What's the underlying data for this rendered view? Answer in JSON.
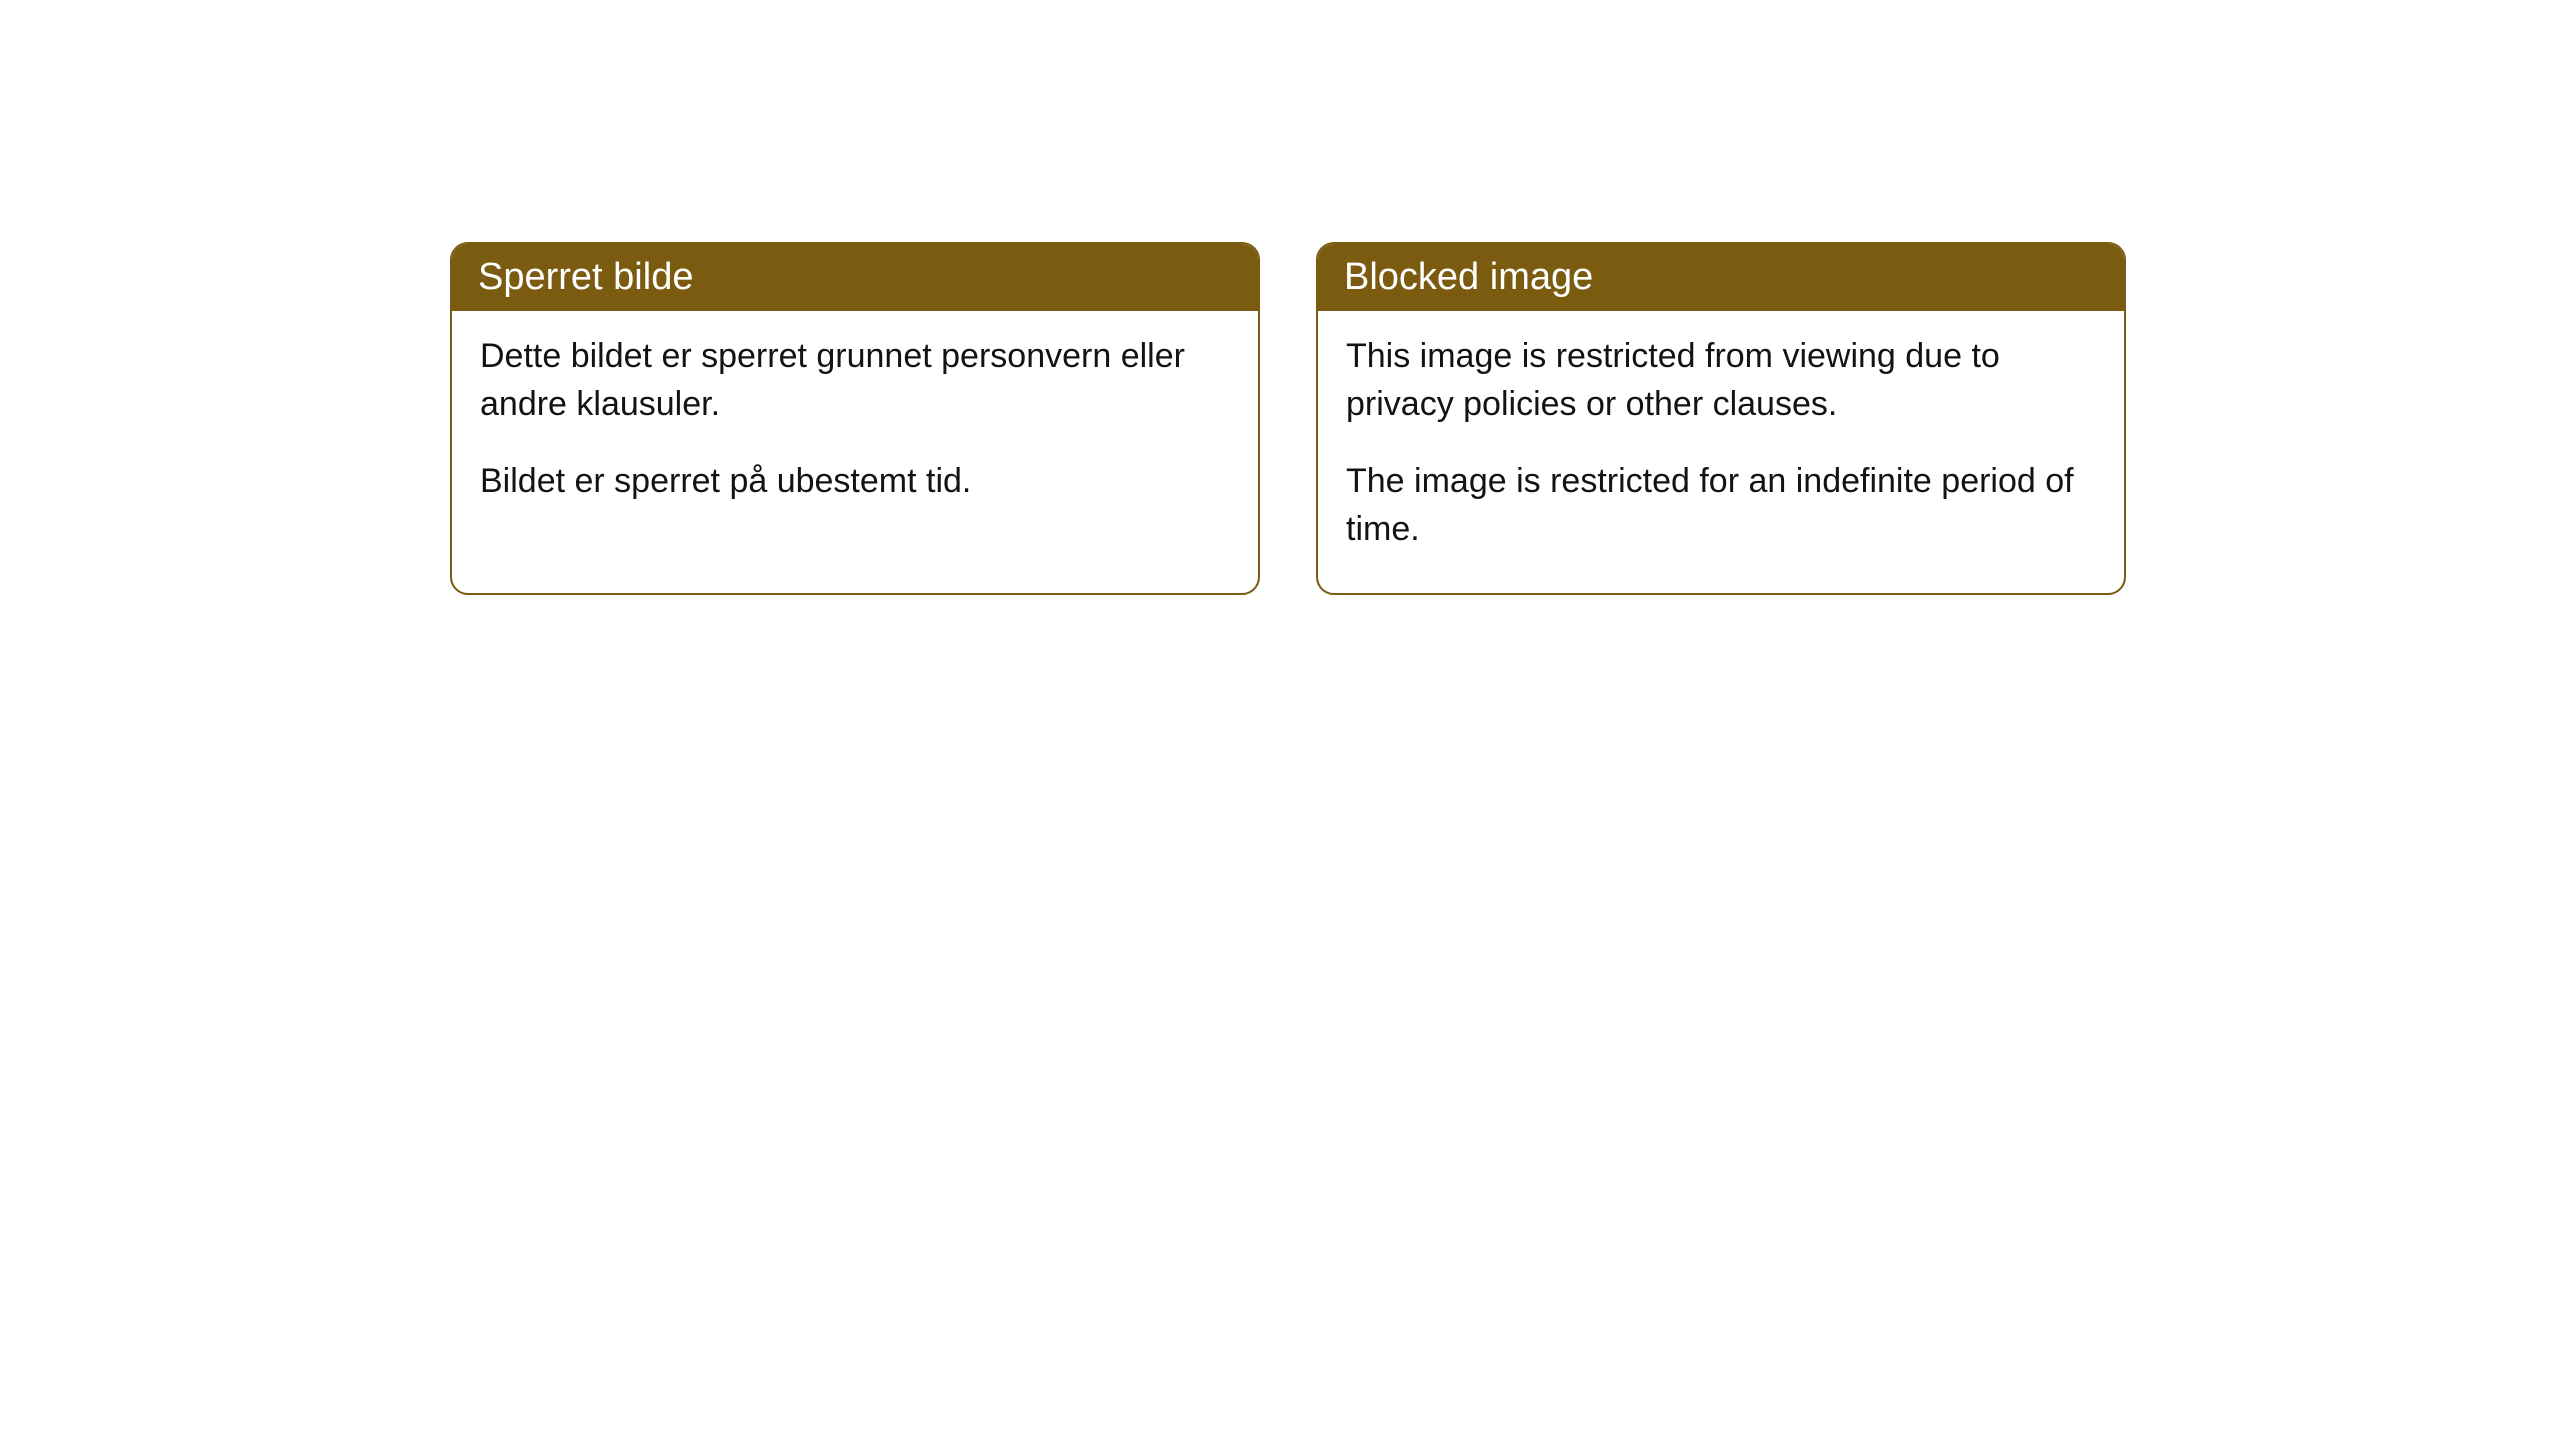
{
  "cards": [
    {
      "title": "Sperret bilde",
      "paragraph1": "Dette bildet er sperret grunnet personvern eller andre klausuler.",
      "paragraph2": "Bildet er sperret på ubestemt tid."
    },
    {
      "title": "Blocked image",
      "paragraph1": "This image is restricted from viewing due to privacy policies or other clauses.",
      "paragraph2": "The image is restricted for an indefinite period of time."
    }
  ],
  "styling": {
    "header_bg_color": "#7a5b0f",
    "header_text_color": "#ffffff",
    "border_color": "#7a5b0f",
    "body_text_color": "#131313",
    "card_bg_color": "#ffffff",
    "page_bg_color": "#ffffff",
    "border_radius": 18,
    "title_fontsize": 38,
    "body_fontsize": 34
  }
}
